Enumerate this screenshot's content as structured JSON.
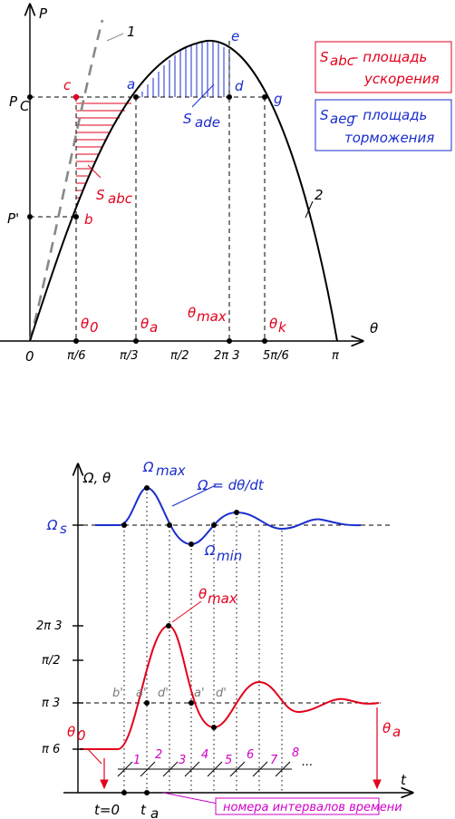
{
  "colors": {
    "red": "#e3001b",
    "blue": "#1a2dcc",
    "magenta": "#d000c8",
    "gray": "#7a7a7a"
  },
  "top": {
    "axis_y": "P",
    "axis_x": "θ",
    "origin": "0",
    "pc": "P",
    "pc_sub": "C",
    "p_prime": "P'",
    "curve1": "1",
    "curve2": "2",
    "pt_a": "a",
    "pt_b": "b",
    "pt_c": "c",
    "pt_d": "d",
    "pt_e": "e",
    "pt_g": "g",
    "s_abc": "S",
    "s_abc_sub": "abc",
    "s_ade": "S",
    "s_ade_sub": "ade",
    "theta0": "θ",
    "theta0_sub": "0",
    "thetaa": "θ",
    "thetaa_sub": "a",
    "thetamax": "θ",
    "thetamax_sub": "max",
    "thetak": "θ",
    "thetak_sub": "k",
    "ticks": [
      "π/6",
      "π/3",
      "π/2",
      "2π 3",
      "5π/6",
      "π"
    ],
    "legend_red": {
      "s": "S",
      "sub": "abc",
      "line1": "– площадь",
      "line2": "ускорения"
    },
    "legend_blue": {
      "s": "S",
      "sub": "aeg",
      "line1": "– площадь",
      "line2": "торможения"
    }
  },
  "bottom": {
    "axis_y": "Ω, θ",
    "axis_t": "t",
    "omega_s": "Ω",
    "omega_s_sub": "s",
    "omega_max": "Ω",
    "omega_max_sub": "max",
    "omega_min": "Ω",
    "omega_min_sub": "min",
    "formula": "Ω = dθ/dt",
    "thetamax": "θ",
    "thetamax_sub": "max",
    "theta0": "θ",
    "theta0_sub": "0",
    "thetaa": "θ",
    "thetaa_sub": "a",
    "yticks": [
      "2π 3",
      "π/2",
      "π 3",
      "π 6"
    ],
    "t0": "t=0",
    "ta": "t",
    "ta_sub": "a",
    "points": [
      "b'",
      "a'",
      "d'",
      "a'",
      "d'"
    ],
    "intervals": [
      "1",
      "2",
      "3",
      "4",
      "5",
      "6",
      "7",
      "8",
      "..."
    ],
    "caption": "номера интервалов времени"
  }
}
